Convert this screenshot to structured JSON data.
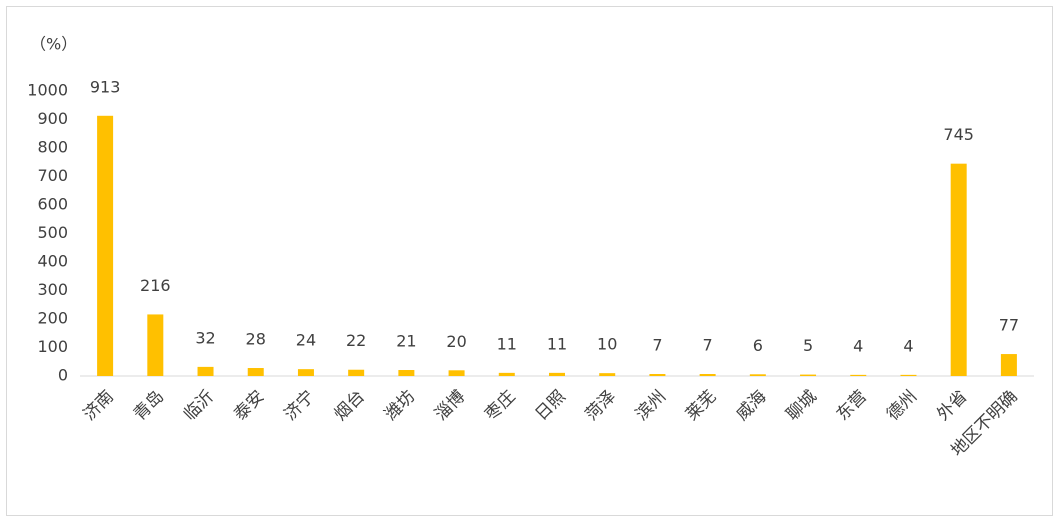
{
  "chart_data": {
    "type": "bar",
    "y_label": "（%）",
    "categories": [
      "济南",
      "青岛",
      "临沂",
      "泰安",
      "济宁",
      "烟台",
      "潍坊",
      "淄博",
      "枣庄",
      "日照",
      "菏泽",
      "滨州",
      "莱芜",
      "威海",
      "聊城",
      "东营",
      "德州",
      "外省",
      "地区不明确"
    ],
    "values": [
      913,
      216,
      32,
      28,
      24,
      22,
      21,
      20,
      11,
      11,
      10,
      7,
      7,
      6,
      5,
      4,
      4,
      745,
      77
    ],
    "color": "#ffc000",
    "ylim": [
      0,
      1000
    ],
    "yticks": [
      0,
      100,
      200,
      300,
      400,
      500,
      600,
      700,
      800,
      900,
      1000
    ],
    "grid": false
  }
}
